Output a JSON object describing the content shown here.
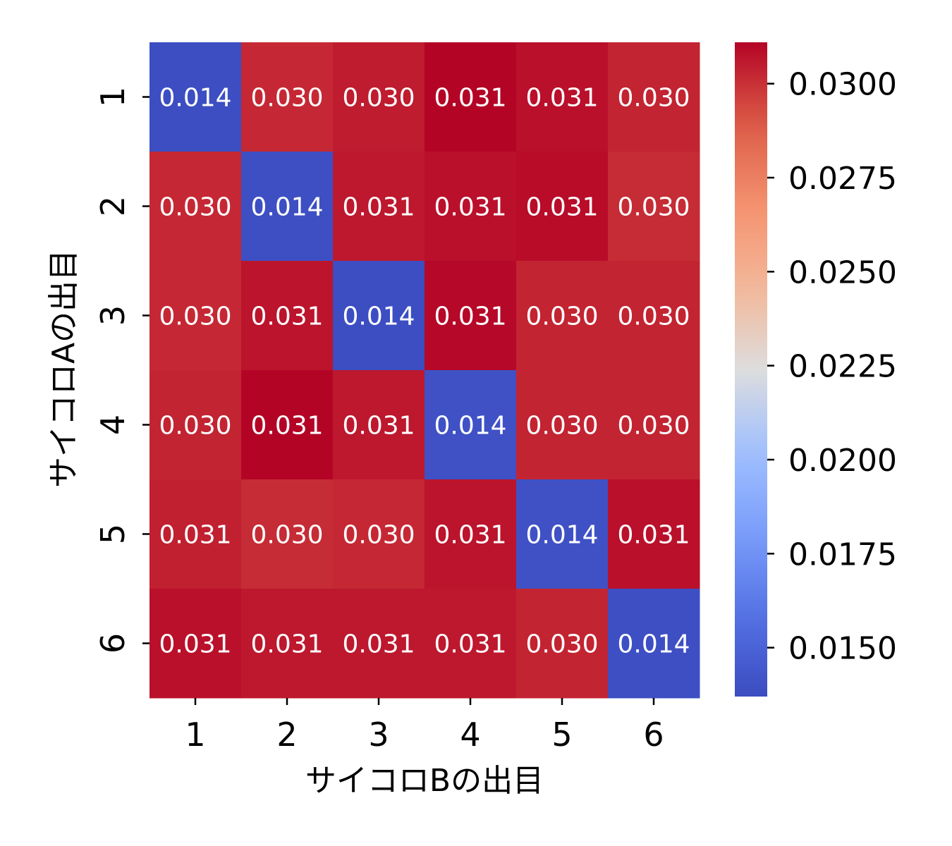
{
  "chart_data": {
    "type": "heatmap",
    "x_categories": [
      "1",
      "2",
      "3",
      "4",
      "5",
      "6"
    ],
    "y_categories": [
      "1",
      "2",
      "3",
      "4",
      "5",
      "6"
    ],
    "xlabel": "サイコロBの出目",
    "ylabel": "サイコロAの出目",
    "values": [
      [
        0.014,
        0.03,
        0.03,
        0.031,
        0.031,
        0.03
      ],
      [
        0.03,
        0.014,
        0.031,
        0.031,
        0.031,
        0.03
      ],
      [
        0.03,
        0.031,
        0.014,
        0.031,
        0.03,
        0.03
      ],
      [
        0.03,
        0.031,
        0.031,
        0.014,
        0.03,
        0.03
      ],
      [
        0.031,
        0.03,
        0.03,
        0.031,
        0.014,
        0.031
      ],
      [
        0.031,
        0.031,
        0.031,
        0.031,
        0.03,
        0.014
      ]
    ],
    "color_values": [
      [
        0.0138,
        0.0302,
        0.0305,
        0.0311,
        0.0308,
        0.0303
      ],
      [
        0.0302,
        0.0139,
        0.0306,
        0.0308,
        0.0309,
        0.0301
      ],
      [
        0.0302,
        0.0307,
        0.0138,
        0.031,
        0.0303,
        0.0303
      ],
      [
        0.0303,
        0.0311,
        0.0306,
        0.014,
        0.0303,
        0.0303
      ],
      [
        0.0304,
        0.0301,
        0.0302,
        0.0307,
        0.014,
        0.0308
      ],
      [
        0.0308,
        0.0306,
        0.0306,
        0.0306,
        0.0303,
        0.0139
      ]
    ],
    "colormap": "coolwarm",
    "colorbar": {
      "vmin": 0.0137,
      "vmax": 0.0311,
      "ticks": [
        0.015,
        0.0175,
        0.02,
        0.0225,
        0.025,
        0.0275,
        0.03
      ],
      "tick_labels": [
        "0.0150",
        "0.0175",
        "0.0200",
        "0.0225",
        "0.0250",
        "0.0275",
        "0.0300"
      ]
    },
    "colors": {
      "low": "#3b4cc0",
      "mid": "#dddddd",
      "high": "#b40426"
    }
  }
}
